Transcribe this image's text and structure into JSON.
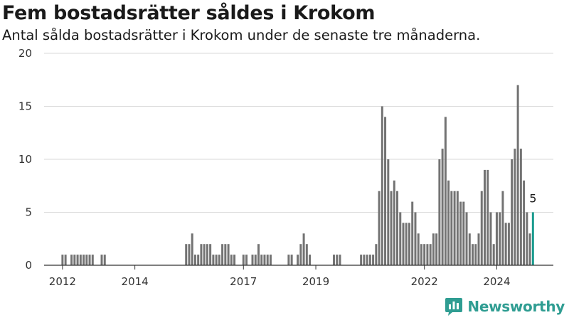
{
  "title": "Fem bostadsrätter såldes i Krokom",
  "subtitle": "Antal sålda bostadsrätter i Krokom under de senaste tre månaderna.",
  "brand": {
    "name": "Newsworthy",
    "color": "#2f9d92",
    "icon": "bar-chart-logo-icon"
  },
  "colors": {
    "bar": "#737373",
    "highlight": "#1a9b8e",
    "grid": "#d9d9d9",
    "axis": "#333333"
  },
  "chart_data": {
    "type": "bar",
    "title": "Fem bostadsrätter såldes i Krokom",
    "subtitle": "Antal sålda bostadsrätter i Krokom under de senaste tre månaderna.",
    "xlabel": "",
    "ylabel": "",
    "ylim": [
      0,
      20
    ],
    "yticks": [
      0,
      5,
      10,
      15,
      20
    ],
    "xtick_labels": [
      "2012",
      "2014",
      "2017",
      "2019",
      "2022",
      "2024"
    ],
    "xtick_months": [
      "2012-01",
      "2014-01",
      "2017-01",
      "2019-01",
      "2022-01",
      "2024-01"
    ],
    "grid": "horizontal",
    "series": [
      {
        "values": [
          [
            "2012-01",
            1
          ],
          [
            "2012-02",
            1
          ],
          [
            "2012-04",
            1
          ],
          [
            "2012-05",
            1
          ],
          [
            "2012-06",
            1
          ],
          [
            "2012-07",
            1
          ],
          [
            "2012-08",
            1
          ],
          [
            "2012-09",
            1
          ],
          [
            "2012-10",
            1
          ],
          [
            "2012-11",
            1
          ],
          [
            "2013-02",
            1
          ],
          [
            "2013-03",
            1
          ],
          [
            "2015-06",
            2
          ],
          [
            "2015-07",
            2
          ],
          [
            "2015-08",
            3
          ],
          [
            "2015-09",
            1
          ],
          [
            "2015-10",
            1
          ],
          [
            "2015-11",
            2
          ],
          [
            "2015-12",
            2
          ],
          [
            "2016-01",
            2
          ],
          [
            "2016-02",
            2
          ],
          [
            "2016-03",
            1
          ],
          [
            "2016-04",
            1
          ],
          [
            "2016-05",
            1
          ],
          [
            "2016-06",
            2
          ],
          [
            "2016-07",
            2
          ],
          [
            "2016-08",
            2
          ],
          [
            "2016-09",
            1
          ],
          [
            "2016-10",
            1
          ],
          [
            "2017-01",
            1
          ],
          [
            "2017-02",
            1
          ],
          [
            "2017-04",
            1
          ],
          [
            "2017-05",
            1
          ],
          [
            "2017-06",
            2
          ],
          [
            "2017-07",
            1
          ],
          [
            "2017-08",
            1
          ],
          [
            "2017-09",
            1
          ],
          [
            "2017-10",
            1
          ],
          [
            "2018-04",
            1
          ],
          [
            "2018-05",
            1
          ],
          [
            "2018-07",
            1
          ],
          [
            "2018-08",
            2
          ],
          [
            "2018-09",
            3
          ],
          [
            "2018-10",
            2
          ],
          [
            "2018-11",
            1
          ],
          [
            "2019-07",
            1
          ],
          [
            "2019-08",
            1
          ],
          [
            "2019-09",
            1
          ],
          [
            "2020-04",
            1
          ],
          [
            "2020-05",
            1
          ],
          [
            "2020-06",
            1
          ],
          [
            "2020-07",
            1
          ],
          [
            "2020-08",
            1
          ],
          [
            "2020-09",
            2
          ],
          [
            "2020-10",
            7
          ],
          [
            "2020-11",
            15
          ],
          [
            "2020-12",
            14
          ],
          [
            "2021-01",
            10
          ],
          [
            "2021-02",
            7
          ],
          [
            "2021-03",
            8
          ],
          [
            "2021-04",
            7
          ],
          [
            "2021-05",
            5
          ],
          [
            "2021-06",
            4
          ],
          [
            "2021-07",
            4
          ],
          [
            "2021-08",
            4
          ],
          [
            "2021-09",
            6
          ],
          [
            "2021-10",
            5
          ],
          [
            "2021-11",
            3
          ],
          [
            "2021-12",
            2
          ],
          [
            "2022-01",
            2
          ],
          [
            "2022-02",
            2
          ],
          [
            "2022-03",
            2
          ],
          [
            "2022-04",
            3
          ],
          [
            "2022-05",
            3
          ],
          [
            "2022-06",
            10
          ],
          [
            "2022-07",
            11
          ],
          [
            "2022-08",
            14
          ],
          [
            "2022-09",
            8
          ],
          [
            "2022-10",
            7
          ],
          [
            "2022-11",
            7
          ],
          [
            "2022-12",
            7
          ],
          [
            "2023-01",
            6
          ],
          [
            "2023-02",
            6
          ],
          [
            "2023-03",
            5
          ],
          [
            "2023-04",
            3
          ],
          [
            "2023-05",
            2
          ],
          [
            "2023-06",
            2
          ],
          [
            "2023-07",
            3
          ],
          [
            "2023-08",
            7
          ],
          [
            "2023-09",
            9
          ],
          [
            "2023-10",
            9
          ],
          [
            "2023-11",
            5
          ],
          [
            "2023-12",
            2
          ],
          [
            "2024-01",
            5
          ],
          [
            "2024-02",
            5
          ],
          [
            "2024-03",
            7
          ],
          [
            "2024-04",
            4
          ],
          [
            "2024-05",
            4
          ],
          [
            "2024-06",
            10
          ],
          [
            "2024-07",
            11
          ],
          [
            "2024-08",
            17
          ],
          [
            "2024-09",
            11
          ],
          [
            "2024-10",
            8
          ],
          [
            "2024-11",
            5
          ],
          [
            "2024-12",
            3
          ],
          [
            "2025-01",
            5
          ]
        ]
      }
    ],
    "highlight": {
      "month": "2025-01",
      "value": 5,
      "label": "5"
    }
  }
}
